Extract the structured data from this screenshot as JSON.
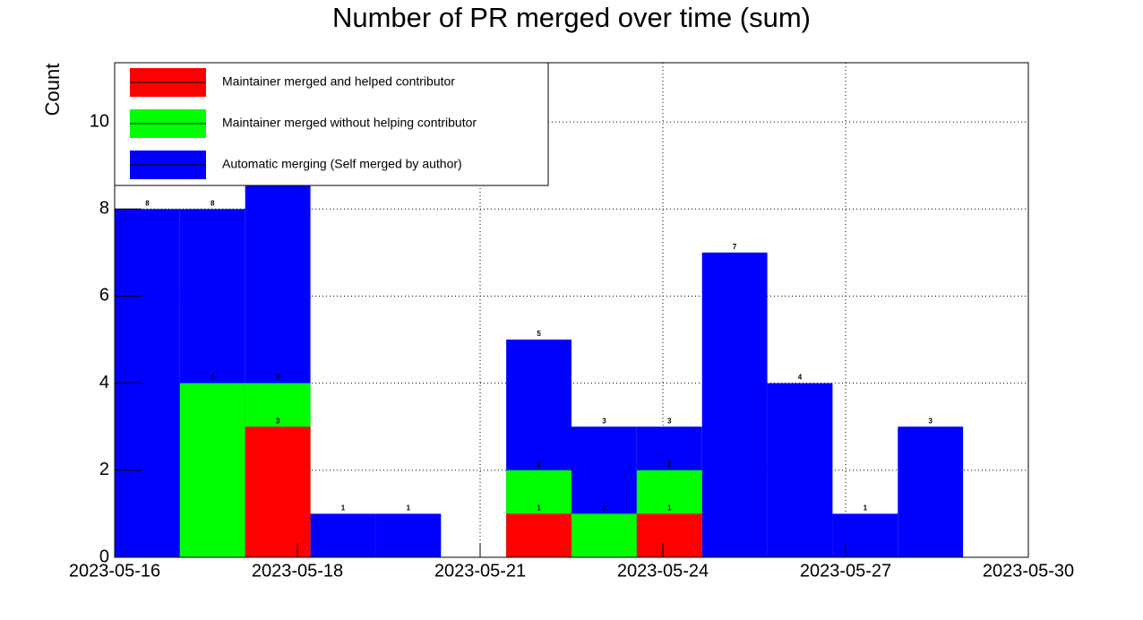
{
  "chart_data": {
    "type": "histogram",
    "title": "Number of PR merged over time (sum)",
    "y_label": "Count",
    "bins": [
      16,
      17,
      18,
      19,
      20,
      21,
      22,
      23,
      24,
      25,
      26,
      27,
      28,
      29,
      30
    ],
    "xlim": [
      16,
      30
    ],
    "xticks": [
      {
        "value": 16,
        "label": "2023-05-16"
      },
      {
        "value": 18.8,
        "label": "2023-05-18"
      },
      {
        "value": 21.6,
        "label": "2023-05-21"
      },
      {
        "value": 24.4,
        "label": "2023-05-24"
      },
      {
        "value": 27.2,
        "label": "2023-05-27"
      },
      {
        "value": 30,
        "label": "2023-05-30"
      }
    ],
    "ylim": [
      0,
      11.36
    ],
    "yticks": [
      0,
      2,
      4,
      6,
      8,
      10
    ],
    "grid": true,
    "legend": "top-left",
    "series": [
      {
        "name": "Automatic merging (Self merged by author)",
        "color": "#0000ff",
        "values": [
          8,
          8,
          9,
          1,
          1,
          0,
          5,
          3,
          3,
          7,
          4,
          1,
          3,
          0
        ]
      },
      {
        "name": "Maintainer merged without helping contributor",
        "color": "#00ff00",
        "values": [
          0,
          4,
          4,
          0,
          0,
          0,
          2,
          1,
          2,
          0,
          0,
          0,
          0,
          0
        ]
      },
      {
        "name": "Maintainer merged and helped contributor",
        "color": "#ff0000",
        "values": [
          0,
          0,
          3,
          0,
          0,
          0,
          1,
          0,
          1,
          0,
          0,
          0,
          0,
          0
        ]
      }
    ]
  }
}
